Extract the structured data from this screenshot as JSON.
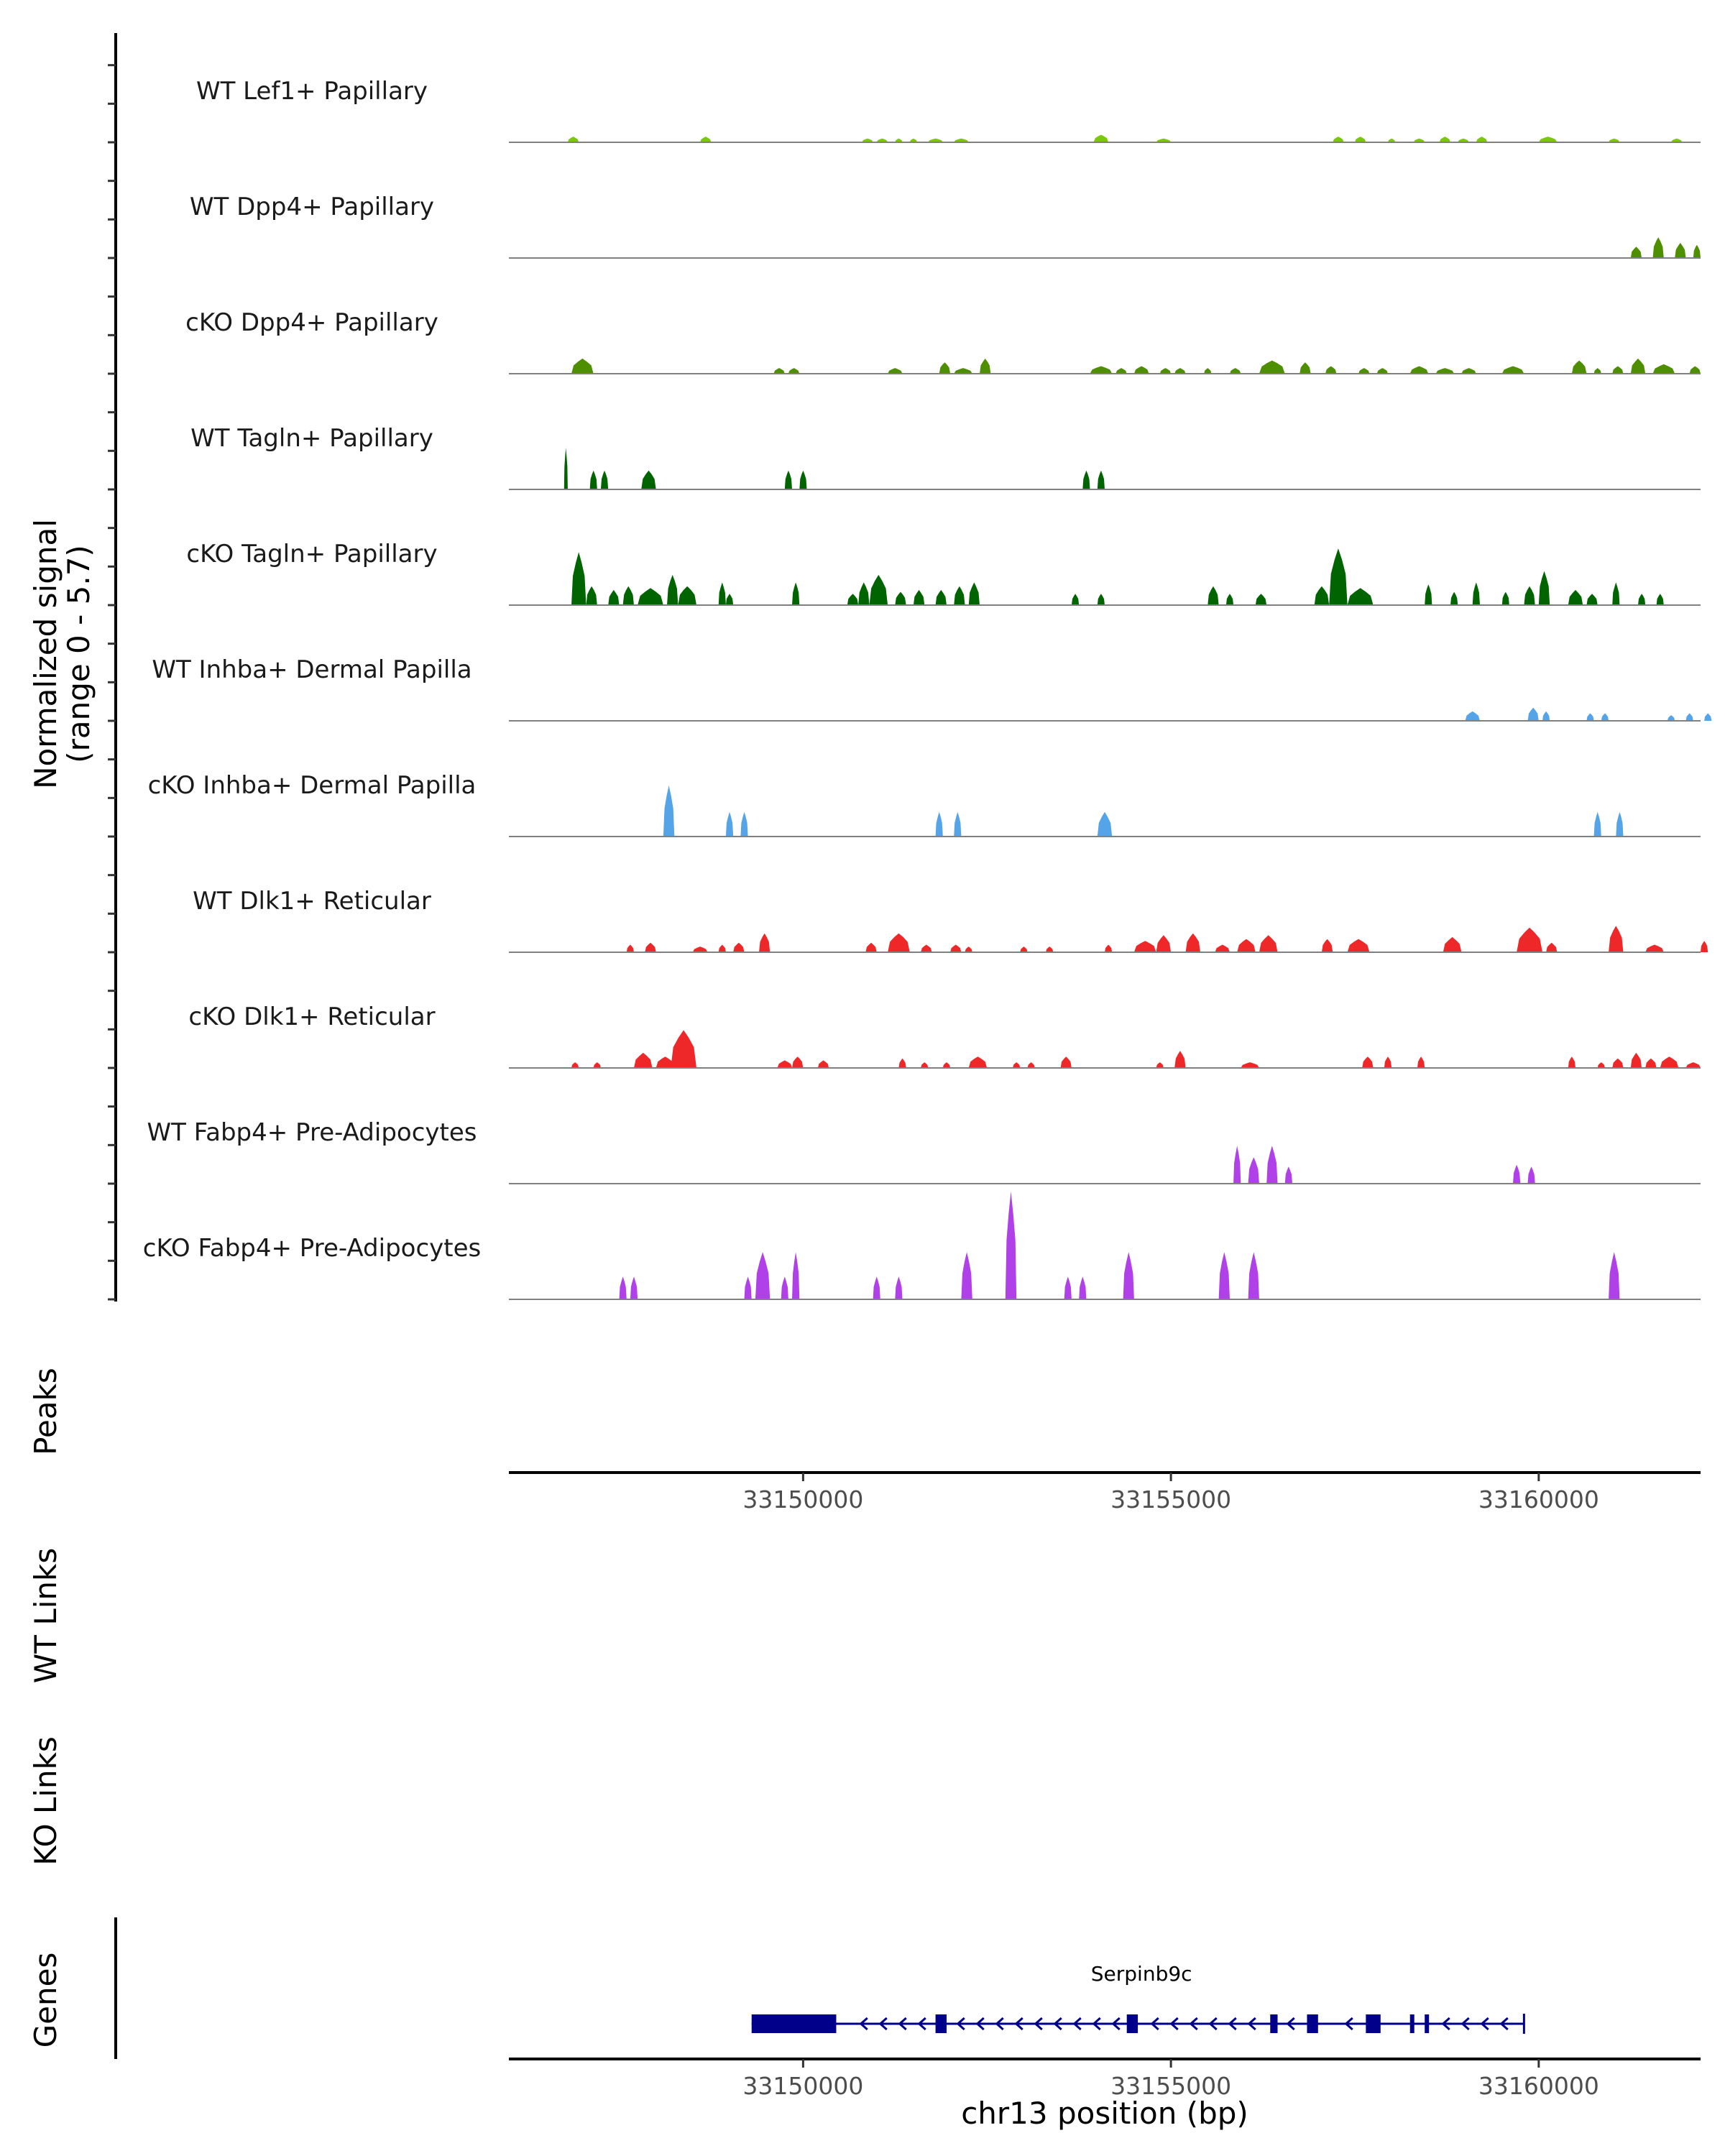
{
  "chart_data": {
    "type": "area",
    "title": "",
    "y_axis_label": "Normalized signal",
    "y_axis_sublabel": "(range 0 - 5.7)",
    "ylim": [
      0,
      5.7
    ],
    "xlabel": "chr13 position (bp)",
    "xlim": [
      33146000,
      33162200
    ],
    "x_ticks": [
      33150000,
      33155000,
      33160000
    ],
    "x_tick_labels": [
      "33150000",
      "33155000",
      "33160000"
    ],
    "region_labels": {
      "peaks": "Peaks",
      "wt_links": "WT Links",
      "ko_links": "KO Links",
      "genes": "Genes"
    },
    "tracks": [
      {
        "name": "WT Lef1+ Papillary",
        "color": "#7ac70c",
        "peaks": [
          [
            33146800,
            33146950,
            0.3
          ],
          [
            33148600,
            33148750,
            0.3
          ],
          [
            33150800,
            33150950,
            0.2
          ],
          [
            33151000,
            33151150,
            0.2
          ],
          [
            33151250,
            33151350,
            0.2
          ],
          [
            33151450,
            33151550,
            0.2
          ],
          [
            33151700,
            33151900,
            0.2
          ],
          [
            33152050,
            33152250,
            0.2
          ],
          [
            33153950,
            33154150,
            0.4
          ],
          [
            33154800,
            33155000,
            0.2
          ],
          [
            33157200,
            33157350,
            0.3
          ],
          [
            33157500,
            33157650,
            0.3
          ],
          [
            33157950,
            33158050,
            0.2
          ],
          [
            33158300,
            33158450,
            0.2
          ],
          [
            33158650,
            33158800,
            0.3
          ],
          [
            33158900,
            33159050,
            0.2
          ],
          [
            33159150,
            33159300,
            0.3
          ],
          [
            33160000,
            33160250,
            0.3
          ],
          [
            33160950,
            33161100,
            0.2
          ],
          [
            33161800,
            33161950,
            0.2
          ]
        ]
      },
      {
        "name": "WT Dpp4+ Papillary",
        "color": "#4e8f00",
        "peaks": [
          [
            33161250,
            33161400,
            0.6
          ],
          [
            33161550,
            33161700,
            1.1
          ],
          [
            33161850,
            33162000,
            0.8
          ],
          [
            33162100,
            33162200,
            0.7
          ]
        ]
      },
      {
        "name": "cKO Dpp4+ Papillary",
        "color": "#4e8f00",
        "peaks": [
          [
            33146850,
            33147150,
            0.8
          ],
          [
            33149600,
            33149750,
            0.3
          ],
          [
            33149800,
            33149950,
            0.3
          ],
          [
            33151150,
            33151350,
            0.3
          ],
          [
            33151850,
            33152000,
            0.6
          ],
          [
            33152050,
            33152300,
            0.3
          ],
          [
            33152400,
            33152550,
            0.8
          ],
          [
            33153900,
            33154200,
            0.4
          ],
          [
            33154250,
            33154400,
            0.3
          ],
          [
            33154500,
            33154700,
            0.4
          ],
          [
            33154850,
            33155000,
            0.3
          ],
          [
            33155050,
            33155200,
            0.3
          ],
          [
            33155450,
            33155550,
            0.3
          ],
          [
            33155800,
            33155950,
            0.3
          ],
          [
            33156200,
            33156550,
            0.7
          ],
          [
            33156750,
            33156900,
            0.6
          ],
          [
            33157100,
            33157250,
            0.4
          ],
          [
            33157550,
            33157700,
            0.3
          ],
          [
            33157800,
            33157950,
            0.3
          ],
          [
            33158250,
            33158500,
            0.4
          ],
          [
            33158600,
            33158850,
            0.3
          ],
          [
            33158950,
            33159150,
            0.3
          ],
          [
            33159500,
            33159800,
            0.4
          ],
          [
            33160450,
            33160650,
            0.7
          ],
          [
            33160750,
            33160850,
            0.3
          ],
          [
            33161000,
            33161150,
            0.4
          ],
          [
            33161250,
            33161450,
            0.8
          ],
          [
            33161550,
            33161850,
            0.5
          ],
          [
            33162050,
            33162200,
            0.4
          ]
        ]
      },
      {
        "name": "WT Tagln+ Papillary",
        "color": "#006400",
        "peaks": [
          [
            33146750,
            33146800,
            2.2
          ],
          [
            33147100,
            33147200,
            1.0
          ],
          [
            33147250,
            33147350,
            1.0
          ],
          [
            33147800,
            33148000,
            1.0
          ],
          [
            33149750,
            33149850,
            1.0
          ],
          [
            33149950,
            33150050,
            1.0
          ],
          [
            33153800,
            33153900,
            1.0
          ],
          [
            33154000,
            33154100,
            1.0
          ]
        ]
      },
      {
        "name": "cKO Tagln+ Papillary",
        "color": "#006400",
        "peaks": [
          [
            33146850,
            33147050,
            2.8
          ],
          [
            33147050,
            33147200,
            1.0
          ],
          [
            33147350,
            33147500,
            0.8
          ],
          [
            33147550,
            33147700,
            1.0
          ],
          [
            33147750,
            33148100,
            0.9
          ],
          [
            33148150,
            33148300,
            1.6
          ],
          [
            33148300,
            33148550,
            1.0
          ],
          [
            33148850,
            33148950,
            1.2
          ],
          [
            33148950,
            33149050,
            0.6
          ],
          [
            33149850,
            33149950,
            1.2
          ],
          [
            33150600,
            33150750,
            0.6
          ],
          [
            33150750,
            33150900,
            1.2
          ],
          [
            33150900,
            33151150,
            1.6
          ],
          [
            33151250,
            33151400,
            0.7
          ],
          [
            33151500,
            33151650,
            0.8
          ],
          [
            33151800,
            33151950,
            0.8
          ],
          [
            33152050,
            33152200,
            1.0
          ],
          [
            33152250,
            33152400,
            1.2
          ],
          [
            33153650,
            33153750,
            0.6
          ],
          [
            33154000,
            33154100,
            0.6
          ],
          [
            33155500,
            33155650,
            1.0
          ],
          [
            33155750,
            33155850,
            0.6
          ],
          [
            33156150,
            33156300,
            0.6
          ],
          [
            33156950,
            33157150,
            1.0
          ],
          [
            33157150,
            33157400,
            3.0
          ],
          [
            33157400,
            33157750,
            0.9
          ],
          [
            33158450,
            33158550,
            1.1
          ],
          [
            33158800,
            33158900,
            0.7
          ],
          [
            33159100,
            33159200,
            1.2
          ],
          [
            33159500,
            33159600,
            0.7
          ],
          [
            33159800,
            33159950,
            1.0
          ],
          [
            33160000,
            33160150,
            1.8
          ],
          [
            33160400,
            33160600,
            0.8
          ],
          [
            33160650,
            33160800,
            0.6
          ],
          [
            33161000,
            33161100,
            1.2
          ],
          [
            33161350,
            33161450,
            0.6
          ],
          [
            33161600,
            33161700,
            0.6
          ]
        ]
      },
      {
        "name": "WT Inhba+ Dermal Papilla",
        "color": "#56a4e8",
        "peaks": [
          [
            33159000,
            33159200,
            0.5
          ],
          [
            33159850,
            33160000,
            0.7
          ],
          [
            33160050,
            33160150,
            0.5
          ],
          [
            33160650,
            33160750,
            0.4
          ],
          [
            33160850,
            33160950,
            0.4
          ],
          [
            33161750,
            33161850,
            0.3
          ],
          [
            33162000,
            33162100,
            0.4
          ],
          [
            33162250,
            33162350,
            0.4
          ]
        ]
      },
      {
        "name": "cKO Inhba+ Dermal Papilla",
        "color": "#56a4e8",
        "peaks": [
          [
            33148100,
            33148250,
            2.7
          ],
          [
            33148950,
            33149050,
            1.3
          ],
          [
            33149150,
            33149250,
            1.3
          ],
          [
            33151800,
            33151900,
            1.3
          ],
          [
            33152050,
            33152150,
            1.3
          ],
          [
            33154000,
            33154200,
            1.3
          ],
          [
            33160750,
            33160850,
            1.3
          ],
          [
            33161050,
            33161150,
            1.3
          ]
        ]
      },
      {
        "name": "WT Dlk1+ Reticular",
        "color": "#ee2828",
        "peaks": [
          [
            33147600,
            33147700,
            0.4
          ],
          [
            33147850,
            33148000,
            0.5
          ],
          [
            33148500,
            33148700,
            0.3
          ],
          [
            33148850,
            33148950,
            0.4
          ],
          [
            33149050,
            33149200,
            0.5
          ],
          [
            33149400,
            33149550,
            1.0
          ],
          [
            33150850,
            33151000,
            0.5
          ],
          [
            33151150,
            33151450,
            1.0
          ],
          [
            33151600,
            33151750,
            0.4
          ],
          [
            33152000,
            33152150,
            0.4
          ],
          [
            33152200,
            33152300,
            0.3
          ],
          [
            33152950,
            33153050,
            0.3
          ],
          [
            33153300,
            33153400,
            0.3
          ],
          [
            33154100,
            33154200,
            0.4
          ],
          [
            33154500,
            33154800,
            0.6
          ],
          [
            33154800,
            33155000,
            0.9
          ],
          [
            33155200,
            33155400,
            1.0
          ],
          [
            33155600,
            33155800,
            0.4
          ],
          [
            33155900,
            33156150,
            0.7
          ],
          [
            33156200,
            33156450,
            0.9
          ],
          [
            33157050,
            33157200,
            0.7
          ],
          [
            33157400,
            33157700,
            0.7
          ],
          [
            33158700,
            33158950,
            0.8
          ],
          [
            33159700,
            33160050,
            1.3
          ],
          [
            33160100,
            33160250,
            0.5
          ],
          [
            33160950,
            33161150,
            1.4
          ],
          [
            33161450,
            33161700,
            0.4
          ],
          [
            33162200,
            33162300,
            0.6
          ]
        ]
      },
      {
        "name": "cKO Dlk1+ Reticular",
        "color": "#ee2828",
        "peaks": [
          [
            33146850,
            33146950,
            0.3
          ],
          [
            33147150,
            33147250,
            0.3
          ],
          [
            33147700,
            33147950,
            0.8
          ],
          [
            33148000,
            33148250,
            0.6
          ],
          [
            33148200,
            33148550,
            2.0
          ],
          [
            33149650,
            33149850,
            0.4
          ],
          [
            33149850,
            33150000,
            0.6
          ],
          [
            33150200,
            33150350,
            0.4
          ],
          [
            33151300,
            33151400,
            0.5
          ],
          [
            33151600,
            33151700,
            0.3
          ],
          [
            33151900,
            33152000,
            0.3
          ],
          [
            33152250,
            33152500,
            0.6
          ],
          [
            33152850,
            33152950,
            0.3
          ],
          [
            33153050,
            33153150,
            0.3
          ],
          [
            33153500,
            33153650,
            0.6
          ],
          [
            33154800,
            33154900,
            0.3
          ],
          [
            33155050,
            33155200,
            0.9
          ],
          [
            33155950,
            33156200,
            0.3
          ],
          [
            33157600,
            33157750,
            0.6
          ],
          [
            33157900,
            33158000,
            0.6
          ],
          [
            33158350,
            33158450,
            0.6
          ],
          [
            33160400,
            33160500,
            0.6
          ],
          [
            33160800,
            33160900,
            0.3
          ],
          [
            33161000,
            33161150,
            0.5
          ],
          [
            33161250,
            33161400,
            0.8
          ],
          [
            33161450,
            33161600,
            0.5
          ],
          [
            33161650,
            33161900,
            0.6
          ],
          [
            33162000,
            33162200,
            0.3
          ]
        ]
      },
      {
        "name": "WT Fabp4+ Pre-Adipocytes",
        "color": "#b040e8",
        "peaks": [
          [
            33155850,
            33155950,
            2.0
          ],
          [
            33156050,
            33156200,
            1.4
          ],
          [
            33156300,
            33156450,
            2.0
          ],
          [
            33156550,
            33156650,
            0.9
          ],
          [
            33159650,
            33159750,
            1.0
          ],
          [
            33159850,
            33159950,
            0.9
          ]
        ]
      },
      {
        "name": "cKO Fabp4+ Pre-Adipocytes",
        "color": "#b040e8",
        "peaks": [
          [
            33147500,
            33147600,
            1.2
          ],
          [
            33147650,
            33147750,
            1.2
          ],
          [
            33149200,
            33149300,
            1.2
          ],
          [
            33149350,
            33149550,
            2.5
          ],
          [
            33149700,
            33149800,
            1.2
          ],
          [
            33149850,
            33149950,
            2.5
          ],
          [
            33150950,
            33151050,
            1.2
          ],
          [
            33151250,
            33151350,
            1.2
          ],
          [
            33152150,
            33152300,
            2.5
          ],
          [
            33152750,
            33152900,
            5.7
          ],
          [
            33153550,
            33153650,
            1.2
          ],
          [
            33153750,
            33153850,
            1.2
          ],
          [
            33154350,
            33154500,
            2.5
          ],
          [
            33155650,
            33155800,
            2.5
          ],
          [
            33156050,
            33156200,
            2.5
          ],
          [
            33160950,
            33161100,
            2.5
          ]
        ]
      }
    ],
    "gene": {
      "name": "Serpinb9c",
      "strand": "-",
      "start": 33149300,
      "end": 33159800,
      "exons": [
        [
          33149300,
          33150450
        ],
        [
          33151800,
          33151950
        ],
        [
          33154400,
          33154550
        ],
        [
          33156350,
          33156450
        ],
        [
          33156850,
          33157000
        ],
        [
          33157650,
          33157850
        ],
        [
          33158250,
          33158280
        ],
        [
          33158450,
          33158480
        ]
      ],
      "color": "#00008b"
    }
  }
}
